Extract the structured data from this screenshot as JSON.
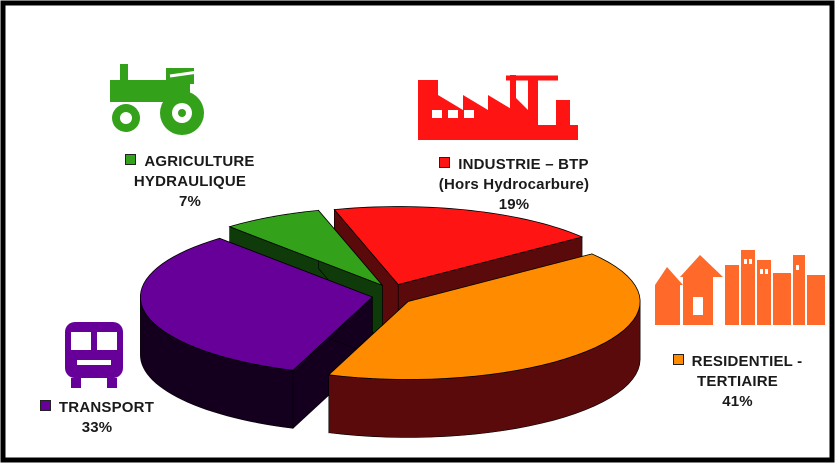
{
  "chart_data": {
    "type": "pie",
    "style": "3d-exploded",
    "title": "",
    "slices": [
      {
        "line1": "INDUSTRIE – BTP",
        "line2": "(Hors Hydrocarbure)",
        "value": 19,
        "pct_label": "19%",
        "color": "#ff1414",
        "side_color": "#5a0a0a",
        "icon": "factory-crane-icon"
      },
      {
        "line1": "RESIDENTIEL -",
        "line2": "TERTIAIRE",
        "value": 41,
        "pct_label": "41%",
        "color": "#ff8c00",
        "side_color": "#5a0a0a",
        "icon": "houses-buildings-icon"
      },
      {
        "line1": "TRANSPORT",
        "line2": "",
        "value": 33,
        "pct_label": "33%",
        "color": "#660099",
        "side_color": "#14001e",
        "icon": "bus-icon"
      },
      {
        "line1": "AGRICULTURE",
        "line2": "HYDRAULIQUE",
        "value": 7,
        "pct_label": "7%",
        "color": "#33a11a",
        "side_color": "#0f3a0a",
        "icon": "tractor-icon"
      }
    ],
    "legend_placement": "labels around pie, each with colored square marker and icon"
  },
  "colors": {
    "frame": "#000000",
    "background": "#ffffff"
  }
}
